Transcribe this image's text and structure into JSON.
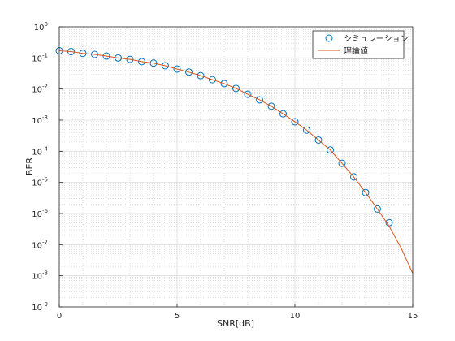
{
  "chart_data": {
    "type": "line",
    "log_y": true,
    "grid": true,
    "minor_grid": true,
    "xlabel": "SNR[dB]",
    "ylabel": "BER",
    "legend": "top-right",
    "xlim": [
      0,
      15
    ],
    "xticks": [
      0,
      5,
      10,
      15
    ],
    "ylim": [
      1e-09,
      1
    ],
    "yticks": [
      {
        "value": 1e-09,
        "label": "10",
        "exponent": "-9"
      },
      {
        "value": 1e-08,
        "label": "10",
        "exponent": "-8"
      },
      {
        "value": 1e-07,
        "label": "10",
        "exponent": "-7"
      },
      {
        "value": 1e-06,
        "label": "10",
        "exponent": "-6"
      },
      {
        "value": 1e-05,
        "label": "10",
        "exponent": "-5"
      },
      {
        "value": 0.0001,
        "label": "10",
        "exponent": "-4"
      },
      {
        "value": 0.001,
        "label": "10",
        "exponent": "-3"
      },
      {
        "value": 0.01,
        "label": "10",
        "exponent": "-2"
      },
      {
        "value": 0.1,
        "label": "10",
        "exponent": "-1"
      },
      {
        "value": 1,
        "label": "10",
        "exponent": "0"
      }
    ],
    "series": [
      {
        "name": "シミュレーション",
        "color": "#0072BD",
        "marker": "circle",
        "x": [
          0,
          0.5,
          1,
          1.5,
          2,
          2.5,
          3,
          3.5,
          4,
          4.5,
          5,
          5.5,
          6,
          6.5,
          7,
          7.5,
          8,
          8.5,
          9,
          9.5,
          10,
          10.5,
          11,
          11.5,
          12,
          12.5,
          13,
          13.5,
          14
        ],
        "values": [
          0.17,
          0.16,
          0.14,
          0.13,
          0.115,
          0.1,
          0.09,
          0.076,
          0.068,
          0.056,
          0.044,
          0.035,
          0.027,
          0.02,
          0.015,
          0.0105,
          0.0068,
          0.0045,
          0.0028,
          0.0016,
          0.00089,
          0.00048,
          0.00023,
          0.00011,
          4.1e-05,
          1.5e-05,
          4.7e-06,
          1.4e-06,
          5.1e-07
        ]
      },
      {
        "name": "理論値",
        "color": "#D95319",
        "marker": "none",
        "x": [
          0,
          0.5,
          1,
          1.5,
          2,
          2.5,
          3,
          3.5,
          4,
          4.5,
          5,
          5.5,
          6,
          6.5,
          7,
          7.5,
          8,
          8.5,
          9,
          9.5,
          10,
          10.5,
          11,
          11.5,
          12,
          12.5,
          13,
          13.5,
          14,
          14.5,
          15
        ],
        "values": [
          0.17,
          0.16,
          0.14,
          0.13,
          0.115,
          0.1,
          0.09,
          0.076,
          0.068,
          0.056,
          0.044,
          0.035,
          0.027,
          0.02,
          0.015,
          0.0105,
          0.0068,
          0.0045,
          0.0028,
          0.0016,
          0.00089,
          0.00048,
          0.00023,
          0.00011,
          4.1e-05,
          1.5e-05,
          4.7e-06,
          1.4e-06,
          3.9e-07,
          8e-08,
          1.2e-08
        ]
      }
    ]
  }
}
